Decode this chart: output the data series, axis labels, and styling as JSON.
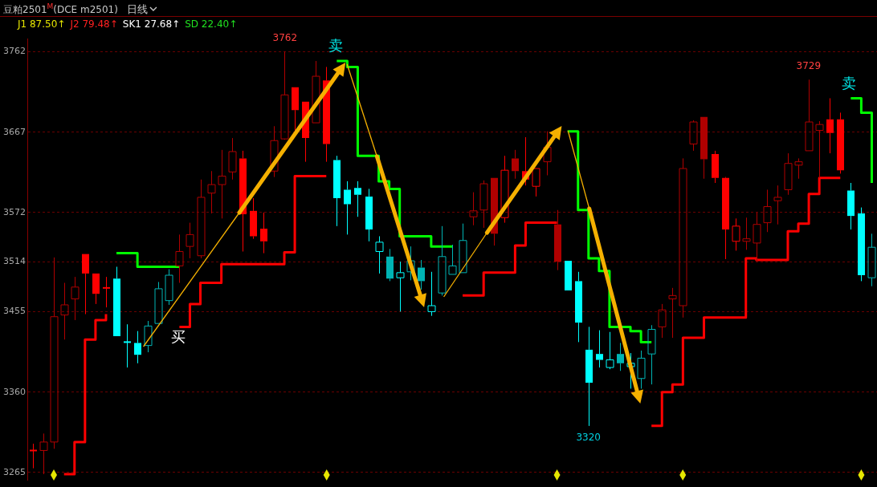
{
  "chart_data": {
    "type": "candlestick",
    "title": "豆粕2501$^{M}$(DCE m2501)",
    "subtitle": "J1 87.50↑ J2 79.48↑ SK1 27.68↑ SD 22.40↑",
    "categories": [
      null,
      null,
      null,
      null,
      null,
      null,
      null,
      null,
      null,
      null,
      null,
      null,
      null,
      null,
      null,
      null,
      null,
      null,
      null,
      null,
      null,
      null,
      null,
      null,
      null,
      null,
      null,
      null,
      null,
      null,
      null,
      null,
      null,
      null,
      null,
      null,
      null,
      null,
      null,
      null,
      null,
      null,
      null,
      null,
      null,
      null,
      null,
      null,
      null,
      null,
      null,
      null,
      null,
      null,
      null,
      null,
      null,
      null,
      null,
      null,
      null,
      null,
      null,
      null,
      null,
      null,
      null,
      null,
      null,
      null,
      null,
      null,
      null,
      null,
      null,
      null,
      null,
      null,
      null,
      null,
      null
    ],
    "ohlc": [
      [
        3291,
        3299,
        3270,
        3291
      ],
      [
        3291,
        3311,
        3263,
        3301
      ],
      [
        3301,
        3519,
        3293,
        3449
      ],
      [
        3451,
        3489,
        3422,
        3463
      ],
      [
        3470,
        3496,
        3445,
        3484
      ],
      [
        3523,
        3523,
        3452,
        3500
      ],
      [
        3500,
        3500,
        3464,
        3476
      ],
      [
        3483,
        3496,
        3460,
        3483
      ],
      [
        3494,
        3508,
        3426,
        3426
      ],
      [
        3419,
        3440,
        3389,
        3419
      ],
      [
        3418,
        3432,
        3394,
        3404
      ],
      [
        3415,
        3444,
        3407,
        3438
      ],
      [
        3441,
        3490,
        3441,
        3482
      ],
      [
        3468,
        3505,
        3463,
        3498
      ],
      [
        3509,
        3546,
        3489,
        3526
      ],
      [
        3532,
        3560,
        3518,
        3546
      ],
      [
        3521,
        3611,
        3518,
        3590
      ],
      [
        3595,
        3621,
        3571,
        3605
      ],
      [
        3605,
        3646,
        3565,
        3615
      ],
      [
        3620,
        3660,
        3611,
        3644
      ],
      [
        3636,
        3645,
        3526,
        3570
      ],
      [
        3574,
        3589,
        3541,
        3544
      ],
      [
        3553,
        3572,
        3524,
        3538
      ],
      [
        3621,
        3674,
        3614,
        3657
      ],
      [
        3659,
        3762,
        3658,
        3711
      ],
      [
        3720,
        3720,
        3667,
        3693
      ],
      [
        3703,
        3703,
        3632,
        3660
      ],
      [
        3678,
        3751,
        3678,
        3733
      ],
      [
        3728,
        3744,
        3632,
        3653
      ],
      [
        3634,
        3639,
        3556,
        3589
      ],
      [
        3599,
        3609,
        3546,
        3582
      ],
      [
        3601,
        3609,
        3567,
        3593
      ],
      [
        3591,
        3600,
        3538,
        3552
      ],
      [
        3526,
        3544,
        3500,
        3537
      ],
      [
        3520,
        3529,
        3491,
        3494
      ],
      [
        3495,
        3514,
        3455,
        3501
      ],
      [
        3502,
        3532,
        3492,
        3515
      ],
      [
        3507,
        3516,
        3481,
        3491
      ],
      [
        3455,
        3502,
        3450,
        3462
      ],
      [
        3477,
        3556,
        3474,
        3520
      ],
      [
        3499,
        3534,
        3499,
        3509
      ],
      [
        3501,
        3559,
        3501,
        3539
      ],
      [
        3567,
        3596,
        3557,
        3574
      ],
      [
        3575,
        3610,
        3554,
        3606
      ],
      [
        3613,
        3613,
        3533,
        3547
      ],
      [
        3566,
        3639,
        3560,
        3622
      ],
      [
        3636,
        3646,
        3612,
        3621
      ],
      [
        3621,
        3661,
        3604,
        3611
      ],
      [
        3603,
        3624,
        3591,
        3624
      ],
      [
        3632,
        3668,
        3616,
        3649
      ],
      [
        3558,
        3575,
        3504,
        3514
      ],
      [
        3515,
        3515,
        3480,
        3480
      ],
      [
        3491,
        3502,
        3419,
        3442
      ],
      [
        3410,
        3437,
        3320,
        3371
      ],
      [
        3405,
        3433,
        3389,
        3398
      ],
      [
        3389,
        3431,
        3387,
        3398
      ],
      [
        3405,
        3418,
        3385,
        3394
      ],
      [
        3390,
        3406,
        3364,
        3394
      ],
      [
        3376,
        3409,
        3364,
        3400
      ],
      [
        3405,
        3439,
        3369,
        3434
      ],
      [
        3437,
        3464,
        3424,
        3457
      ],
      [
        3470,
        3483,
        3424,
        3474
      ],
      [
        3462,
        3636,
        3448,
        3624
      ],
      [
        3653,
        3681,
        3645,
        3679
      ],
      [
        3685,
        3685,
        3612,
        3635
      ],
      [
        3641,
        3645,
        3607,
        3613
      ],
      [
        3613,
        3614,
        3517,
        3552
      ],
      [
        3538,
        3565,
        3527,
        3556
      ],
      [
        3538,
        3566,
        3528,
        3541
      ],
      [
        3536,
        3572,
        3514,
        3558
      ],
      [
        3560,
        3599,
        3549,
        3579
      ],
      [
        3586,
        3604,
        3558,
        3590
      ],
      [
        3599,
        3642,
        3593,
        3630
      ],
      [
        3628,
        3636,
        3612,
        3632
      ],
      [
        3645,
        3729,
        3645,
        3679
      ],
      [
        3669,
        3680,
        3613,
        3676
      ],
      [
        3682,
        3707,
        3642,
        3666
      ],
      [
        3682,
        3690,
        3618,
        3622
      ],
      [
        3598,
        3607,
        3552,
        3568
      ],
      [
        3571,
        3578,
        3491,
        3498
      ],
      [
        3495,
        3547,
        3485,
        3531
      ]
    ],
    "colors": [
      "#ff0000",
      "#b00000",
      "#b00000",
      "#b00000",
      "#b00000",
      "#ff0000",
      "#ff0000",
      "#ff0000",
      "#00ffff",
      "#00ffff",
      "#00ffff",
      "#00b4b4",
      "#00b4b4",
      "#00b4b4",
      "#b00000",
      "#b00000",
      "#b00000",
      "#b00000",
      "#b00000",
      "#b00000",
      "#ff0000",
      "#ff0000",
      "#ff0000",
      "#b00000",
      "#b00000",
      "#ff0000",
      "#ff0000",
      "#b00000",
      "#ff0000",
      "#00ffff",
      "#00ffff",
      "#00ffff",
      "#00ffff",
      "#00ffff",
      "#00b4b4",
      "#00ffff",
      "#00b4b4",
      "#00b4b4",
      "#00ffff",
      "#00b4b4",
      "#00b4b4",
      "#00b4b4",
      "#b00000",
      "#b00000",
      "#b00000",
      "#ff0000",
      "#b00000",
      "#ff0000",
      "#ff0000",
      "#b00000",
      "#b00000",
      "#00ffff",
      "#00ffff",
      "#00ffff",
      "#00ffff",
      "#00ffff",
      "#00b4b4",
      "#00ffff",
      "#00b4b4",
      "#00b4b4",
      "#b00000",
      "#b00000",
      "#b00000",
      "#b00000",
      "#b00000",
      "#ff0000",
      "#ff0000",
      "#ff0000",
      "#b00000",
      "#b00000",
      "#b00000",
      "#b00000",
      "#b00000",
      "#b00000",
      "#b00000",
      "#b00000",
      "#ff0000",
      "#ff0000",
      "#00ffff",
      "#00ffff",
      "#00b4b4"
    ],
    "series": [
      {
        "type": "step",
        "color": "#ff0000",
        "values": [
          null,
          null,
          null,
          3263,
          3301,
          3422,
          3445,
          3452,
          null,
          null,
          null,
          null,
          null,
          null,
          3437,
          3464,
          3489,
          3489,
          3511,
          3511,
          3511,
          3511,
          3511,
          3511,
          3525,
          3615,
          3615,
          3615,
          3615,
          null,
          null,
          null,
          null,
          null,
          null,
          null,
          null,
          null,
          null,
          null,
          null,
          3474,
          3474,
          3501,
          3501,
          3501,
          3533,
          3560,
          3560,
          3560,
          3560,
          null,
          null,
          null,
          null,
          null,
          null,
          null,
          null,
          3320,
          3360,
          3369,
          3424,
          3424,
          3448,
          3448,
          3448,
          3448,
          3518,
          3516,
          3516,
          3516,
          3550,
          3559,
          3594,
          3613,
          3613,
          3613,
          null,
          null,
          null
        ]
      },
      {
        "type": "step",
        "color": "#00ff00",
        "values": [
          null,
          null,
          null,
          null,
          null,
          null,
          null,
          null,
          3524,
          3524,
          3508,
          3508,
          3508,
          3508,
          3508,
          null,
          null,
          null,
          null,
          null,
          null,
          null,
          null,
          null,
          null,
          null,
          null,
          null,
          null,
          3751,
          3744,
          3639,
          3639,
          3609,
          3600,
          3544,
          3544,
          3544,
          3532,
          3532,
          3532,
          null,
          null,
          null,
          null,
          null,
          null,
          null,
          null,
          null,
          null,
          3668,
          3575,
          3518,
          3503,
          3437,
          3437,
          3432,
          3419,
          3419,
          null,
          null,
          null,
          null,
          null,
          null,
          null,
          null,
          null,
          null,
          null,
          null,
          null,
          null,
          null,
          null,
          null,
          null,
          3707,
          3690,
          3607
        ]
      }
    ],
    "ylim": [
      3256,
      3777
    ],
    "yticks": [
      3762,
      3667,
      3572,
      3514,
      3455,
      3360,
      3265
    ],
    "tick_labels": "y",
    "grid": "y",
    "annotations": [
      "日线",
      "3762",
      "卖",
      "买",
      "3320",
      "3729",
      "卖"
    ]
  }
}
